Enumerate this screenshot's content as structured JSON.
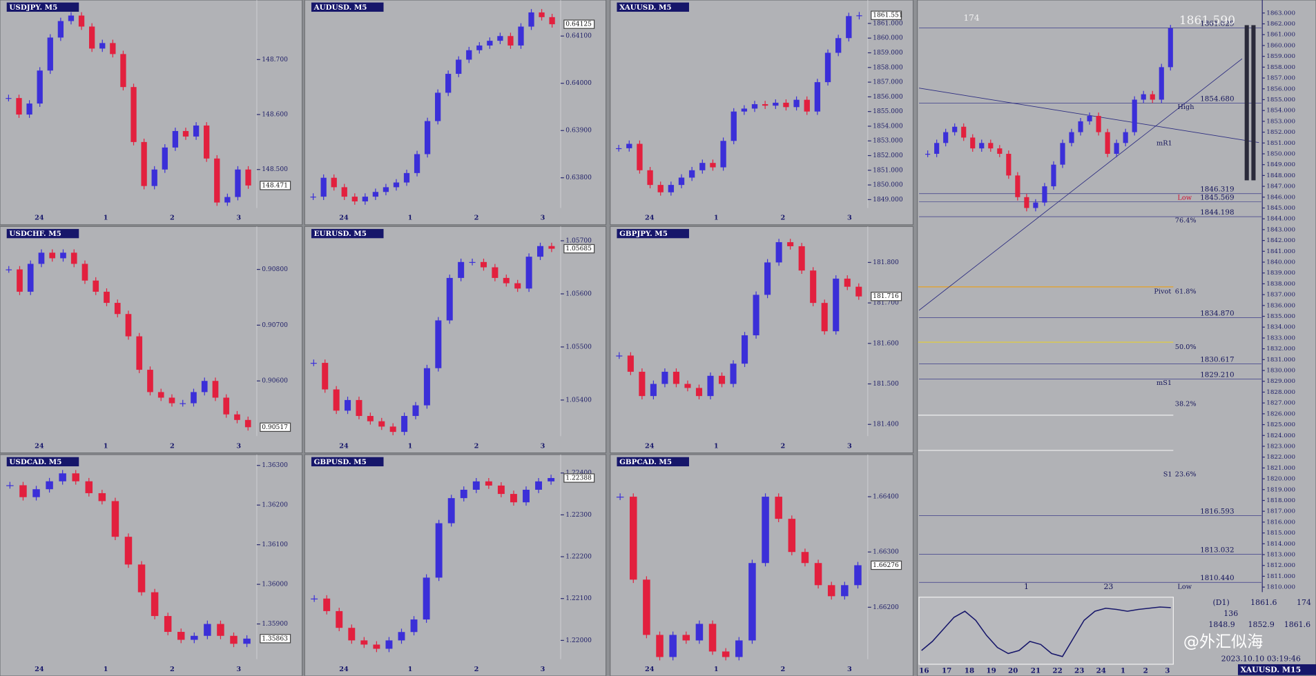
{
  "chart_data": [
    {
      "type": "candlestick",
      "title": "USDJPY. M5",
      "ylim": [
        148.43,
        148.79
      ],
      "yticks": [
        {
          "value": 148.7,
          "label": "148.700"
        },
        {
          "value": 148.6,
          "label": "148.600"
        },
        {
          "value": 148.5,
          "label": "148.500"
        }
      ],
      "x_labels": [
        "24",
        "1",
        "2",
        "3"
      ],
      "closes": [
        148.63,
        148.6,
        148.62,
        148.68,
        148.74,
        148.77,
        148.78,
        148.76,
        148.72,
        148.73,
        148.71,
        148.65,
        148.55,
        148.47,
        148.5,
        148.54,
        148.57,
        148.56,
        148.58,
        148.52,
        148.44,
        148.45,
        148.5,
        148.471
      ],
      "last_price": {
        "value": 148.471,
        "label": "148.471"
      }
    },
    {
      "type": "candlestick",
      "title": "AUDUSD. M5",
      "ylim": [
        0.63736,
        0.64155
      ],
      "yticks": [
        {
          "value": 0.641,
          "label": "0.64100"
        },
        {
          "value": 0.64,
          "label": "0.64000"
        },
        {
          "value": 0.639,
          "label": "0.63900"
        },
        {
          "value": 0.638,
          "label": "0.63800"
        }
      ],
      "x_labels": [
        "24",
        "1",
        "2",
        "3"
      ],
      "closes": [
        0.6376,
        0.638,
        0.6378,
        0.6376,
        0.6375,
        0.6376,
        0.6377,
        0.6378,
        0.6379,
        0.6381,
        0.6385,
        0.6392,
        0.6398,
        0.6402,
        0.6405,
        0.6407,
        0.6408,
        0.6409,
        0.641,
        0.6408,
        0.6412,
        0.6415,
        0.6414,
        0.64125
      ],
      "last_price": {
        "value": 0.64125,
        "label": "0.64125"
      }
    },
    {
      "type": "candlestick",
      "title": "XAUUSD. M5",
      "ylim": [
        1848.43,
        1861.91
      ],
      "yticks": [
        {
          "value": 1861,
          "label": "1861.000"
        },
        {
          "value": 1860,
          "label": "1860.000"
        },
        {
          "value": 1859,
          "label": "1859.000"
        },
        {
          "value": 1858,
          "label": "1858.000"
        },
        {
          "value": 1857,
          "label": "1857.000"
        },
        {
          "value": 1856,
          "label": "1856.000"
        },
        {
          "value": 1855,
          "label": "1855.000"
        },
        {
          "value": 1854,
          "label": "1854.000"
        },
        {
          "value": 1853,
          "label": "1853.000"
        },
        {
          "value": 1852,
          "label": "1852.000"
        },
        {
          "value": 1851,
          "label": "1851.000"
        },
        {
          "value": 1850,
          "label": "1850.000"
        },
        {
          "value": 1849,
          "label": "1849.000"
        }
      ],
      "x_labels": [
        "24",
        "1",
        "2",
        "3"
      ],
      "closes": [
        1852.5,
        1852.8,
        1851,
        1850,
        1849.5,
        1850,
        1850.5,
        1851,
        1851.5,
        1851.2,
        1853,
        1855,
        1855.2,
        1855.5,
        1855.4,
        1855.6,
        1855.3,
        1855.8,
        1855,
        1857,
        1859,
        1860,
        1861.5,
        1861.551
      ],
      "last_price": {
        "value": 1861.551,
        "label": "1861.551"
      }
    },
    {
      "type": "candlestick",
      "title": "USDCHF. M5",
      "ylim": [
        0.90501,
        0.90859
      ],
      "yticks": [
        {
          "value": 0.908,
          "label": "0.90800"
        },
        {
          "value": 0.907,
          "label": "0.90700"
        },
        {
          "value": 0.906,
          "label": "0.90600"
        }
      ],
      "x_labels": [
        "24",
        "1",
        "2",
        "3"
      ],
      "closes": [
        0.908,
        0.9076,
        0.9081,
        0.9083,
        0.9082,
        0.9083,
        0.9081,
        0.9078,
        0.9076,
        0.9074,
        0.9072,
        0.9068,
        0.9062,
        0.9058,
        0.9057,
        0.9056,
        0.9056,
        0.9058,
        0.906,
        0.9057,
        0.9054,
        0.9053,
        0.90517
      ],
      "last_price": {
        "value": 0.90517,
        "label": "0.90517"
      }
    },
    {
      "type": "candlestick",
      "title": "EURUSD. M5",
      "ylim": [
        1.05332,
        1.05708
      ],
      "yticks": [
        {
          "value": 1.057,
          "label": "1.05700"
        },
        {
          "value": 1.056,
          "label": "1.05600"
        },
        {
          "value": 1.055,
          "label": "1.05500"
        },
        {
          "value": 1.054,
          "label": "1.05400"
        }
      ],
      "x_labels": [
        "24",
        "1",
        "2",
        "3"
      ],
      "closes": [
        1.0547,
        1.0542,
        1.0538,
        1.054,
        1.0537,
        1.0536,
        1.0535,
        1.0534,
        1.0537,
        1.0539,
        1.0546,
        1.0555,
        1.0563,
        1.0566,
        1.0566,
        1.0565,
        1.0563,
        1.0562,
        1.0561,
        1.0567,
        1.0569,
        1.05685
      ],
      "last_price": {
        "value": 1.05685,
        "label": "1.05685"
      }
    },
    {
      "type": "candlestick",
      "title": "GBPJPY. M5",
      "ylim": [
        181.371,
        181.864
      ],
      "yticks": [
        {
          "value": 181.8,
          "label": "181.800"
        },
        {
          "value": 181.7,
          "label": "181.700"
        },
        {
          "value": 181.6,
          "label": "181.600"
        },
        {
          "value": 181.5,
          "label": "181.500"
        },
        {
          "value": 181.4,
          "label": "181.400"
        }
      ],
      "x_labels": [
        "24",
        "1",
        "2",
        "3"
      ],
      "closes": [
        181.57,
        181.53,
        181.47,
        181.5,
        181.53,
        181.5,
        181.49,
        181.47,
        181.52,
        181.5,
        181.55,
        181.62,
        181.72,
        181.8,
        181.85,
        181.84,
        181.78,
        181.7,
        181.63,
        181.76,
        181.74,
        181.716
      ],
      "last_price": {
        "value": 181.716,
        "label": "181.716"
      }
    },
    {
      "type": "candlestick",
      "title": "USDCAD. M5",
      "ylim": [
        1.35811,
        1.36302
      ],
      "yticks": [
        {
          "value": 1.363,
          "label": "1.36300"
        },
        {
          "value": 1.362,
          "label": "1.36200"
        },
        {
          "value": 1.361,
          "label": "1.36100"
        },
        {
          "value": 1.36,
          "label": "1.36000"
        },
        {
          "value": 1.359,
          "label": "1.35900"
        }
      ],
      "x_labels": [
        "24",
        "1",
        "2",
        "3"
      ],
      "closes": [
        1.3625,
        1.3622,
        1.3624,
        1.3626,
        1.3628,
        1.3626,
        1.3623,
        1.3621,
        1.3612,
        1.3605,
        1.3598,
        1.3592,
        1.3588,
        1.3586,
        1.3587,
        1.359,
        1.3587,
        1.3585,
        1.35863
      ],
      "last_price": {
        "value": 1.35863,
        "label": "1.35863"
      }
    },
    {
      "type": "candlestick",
      "title": "GBPUSD. M5",
      "ylim": [
        1.21955,
        1.2242
      ],
      "yticks": [
        {
          "value": 1.224,
          "label": "1.22400"
        },
        {
          "value": 1.223,
          "label": "1.22300"
        },
        {
          "value": 1.222,
          "label": "1.22200"
        },
        {
          "value": 1.221,
          "label": "1.22100"
        },
        {
          "value": 1.22,
          "label": "1.22000"
        }
      ],
      "x_labels": [
        "24",
        "1",
        "2",
        "3"
      ],
      "closes": [
        1.221,
        1.2207,
        1.2203,
        1.22,
        1.2199,
        1.2198,
        1.22,
        1.2202,
        1.2205,
        1.2215,
        1.2228,
        1.2234,
        1.2236,
        1.2238,
        1.2237,
        1.2235,
        1.2233,
        1.2236,
        1.2238,
        1.22388
      ],
      "last_price": {
        "value": 1.22388,
        "label": "1.22388"
      }
    },
    {
      "type": "candlestick",
      "title": "GBPCAD. M5",
      "ylim": [
        1.66106,
        1.66458
      ],
      "yticks": [
        {
          "value": 1.664,
          "label": "1.66400"
        },
        {
          "value": 1.663,
          "label": "1.66300"
        },
        {
          "value": 1.662,
          "label": "1.66200"
        }
      ],
      "x_labels": [
        "24",
        "1",
        "2",
        "3"
      ],
      "closes": [
        1.664,
        1.6625,
        1.6615,
        1.6611,
        1.6615,
        1.6614,
        1.6617,
        1.6612,
        1.6611,
        1.6614,
        1.6628,
        1.664,
        1.6636,
        1.663,
        1.6628,
        1.6624,
        1.6622,
        1.6624,
        1.66276
      ],
      "last_price": {
        "value": 1.66276,
        "label": "1.66276"
      }
    },
    {
      "type": "candlestick",
      "title": "XAUUSD. M15",
      "ylim": [
        1810,
        1864.2
      ],
      "yticks": [
        {
          "value": 1863,
          "label": "1863.000"
        },
        {
          "value": 1862,
          "label": "1862.000"
        },
        {
          "value": 1861,
          "label": "1861.000"
        },
        {
          "value": 1860,
          "label": "1860.000"
        },
        {
          "value": 1859,
          "label": "1859.000"
        },
        {
          "value": 1858,
          "label": "1858.000"
        },
        {
          "value": 1857,
          "label": "1857.000"
        },
        {
          "value": 1856,
          "label": "1856.000"
        },
        {
          "value": 1855,
          "label": "1855.000"
        },
        {
          "value": 1854,
          "label": "1854.000"
        },
        {
          "value": 1853,
          "label": "1853.000"
        },
        {
          "value": 1852,
          "label": "1852.000"
        },
        {
          "value": 1851,
          "label": "1851.000"
        },
        {
          "value": 1850,
          "label": "1850.000"
        },
        {
          "value": 1849,
          "label": "1849.000"
        },
        {
          "value": 1848,
          "label": "1848.000"
        },
        {
          "value": 1847,
          "label": "1847.000"
        },
        {
          "value": 1846,
          "label": "1846.000"
        },
        {
          "value": 1845,
          "label": "1845.000"
        },
        {
          "value": 1844,
          "label": "1844.000"
        },
        {
          "value": 1843,
          "label": "1843.000"
        },
        {
          "value": 1842,
          "label": "1842.000"
        },
        {
          "value": 1841,
          "label": "1841.000"
        },
        {
          "value": 1840,
          "label": "1840.000"
        },
        {
          "value": 1839,
          "label": "1839.000"
        },
        {
          "value": 1838,
          "label": "1838.000"
        },
        {
          "value": 1837,
          "label": "1837.000"
        },
        {
          "value": 1836,
          "label": "1836.000"
        },
        {
          "value": 1835,
          "label": "1835.000"
        },
        {
          "value": 1834,
          "label": "1834.000"
        },
        {
          "value": 1833,
          "label": "1833.000"
        },
        {
          "value": 1832,
          "label": "1832.000"
        },
        {
          "value": 1831,
          "label": "1831.000"
        },
        {
          "value": 1830,
          "label": "1830.000"
        },
        {
          "value": 1829,
          "label": "1829.000"
        },
        {
          "value": 1828,
          "label": "1828.000"
        },
        {
          "value": 1827,
          "label": "1827.000"
        },
        {
          "value": 1826,
          "label": "1826.000"
        },
        {
          "value": 1825,
          "label": "1825.000"
        },
        {
          "value": 1824,
          "label": "1824.000"
        },
        {
          "value": 1823,
          "label": "1823.000"
        },
        {
          "value": 1822,
          "label": "1822.000"
        },
        {
          "value": 1821,
          "label": "1821.000"
        },
        {
          "value": 1820,
          "label": "1820.000"
        },
        {
          "value": 1819,
          "label": "1819.000"
        },
        {
          "value": 1818,
          "label": "1818.000"
        },
        {
          "value": 1817,
          "label": "1817.000"
        },
        {
          "value": 1816,
          "label": "1816.000"
        },
        {
          "value": 1815,
          "label": "1815.000"
        },
        {
          "value": 1814,
          "label": "1814.000"
        },
        {
          "value": 1813,
          "label": "1813.000"
        },
        {
          "value": 1812,
          "label": "1812.000"
        },
        {
          "value": 1811,
          "label": "1811.000"
        },
        {
          "value": 1810,
          "label": "1810.000"
        }
      ],
      "x_labels": [
        "16",
        "17",
        "18",
        "19",
        "20",
        "21",
        "22",
        "23",
        "24",
        "1",
        "2",
        "3"
      ],
      "closes": [
        1850,
        1851,
        1852,
        1852.5,
        1851.5,
        1850.5,
        1851,
        1850.5,
        1850,
        1848,
        1846,
        1845,
        1845.5,
        1847,
        1849,
        1851,
        1852,
        1853,
        1853.5,
        1852,
        1850,
        1851,
        1852,
        1855,
        1855.5,
        1855,
        1858,
        1861.59
      ],
      "levels": [
        {
          "value": 1861.629,
          "label": "1861.629"
        },
        {
          "value": 1854.68,
          "label": "1854.680"
        },
        {
          "value": 1846.319,
          "label": "1846.319"
        },
        {
          "value": 1845.569,
          "label": "1845.569"
        },
        {
          "value": 1844.198,
          "label": "1844.198"
        },
        {
          "value": 1834.87,
          "label": "1834.870"
        },
        {
          "value": 1830.617,
          "label": "1830.617"
        },
        {
          "value": 1829.21,
          "label": "1829.210"
        },
        {
          "value": 1816.593,
          "label": "1816.593"
        },
        {
          "value": 1813.032,
          "label": "1813.032"
        },
        {
          "value": 1810.44,
          "label": "1810.440"
        }
      ],
      "annotations": [
        "174",
        "1861.590",
        "High",
        "mR1",
        "Low",
        "76.4%",
        "Pivot",
        "61.8%",
        "50.0%",
        "mS1",
        "38.2%",
        "S1",
        "23.6%",
        "Low",
        "1",
        "23"
      ],
      "oscillator": {
        "ylim": [
          0,
          100
        ],
        "values": [
          20,
          35,
          55,
          75,
          85,
          70,
          45,
          25,
          15,
          20,
          35,
          30,
          15,
          10,
          40,
          70,
          85,
          90,
          88,
          85,
          88,
          90,
          92,
          91
        ]
      },
      "info": [
        "(D1)",
        "1861.6",
        "174",
        "136",
        "1848.9",
        "1852.9",
        "1861.6",
        "2023.10.10 03:19:46"
      ],
      "watermark": "@外汇似海"
    }
  ]
}
